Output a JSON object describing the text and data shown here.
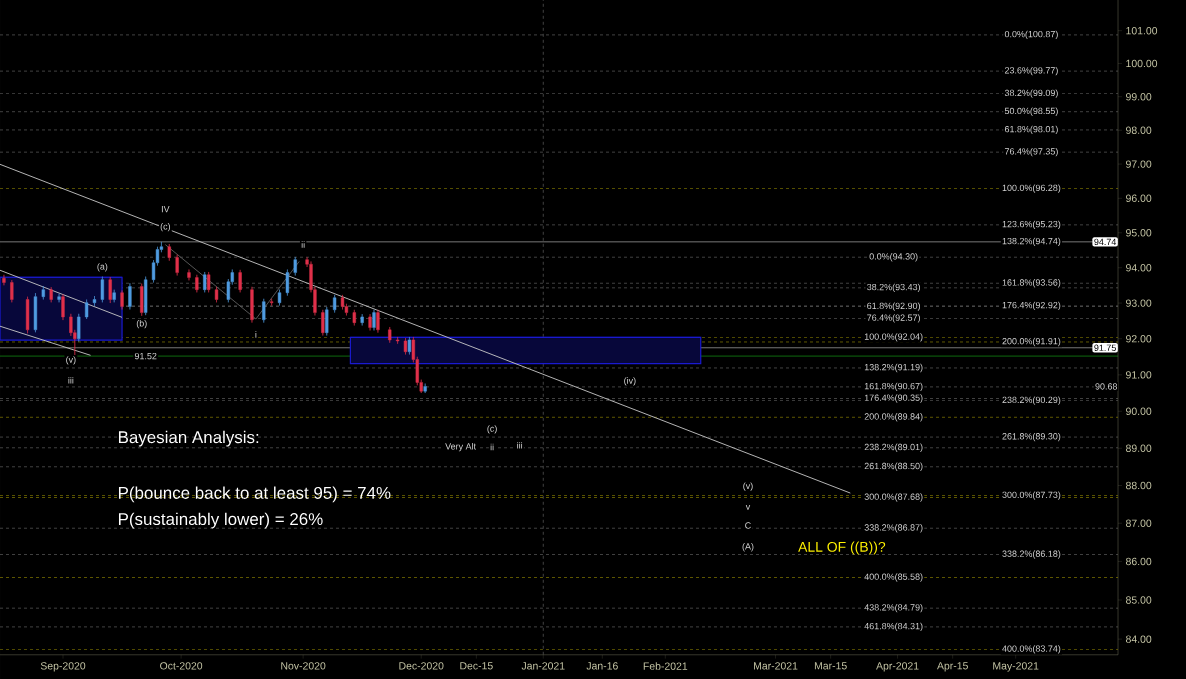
{
  "chart_data": {
    "type": "candlestick",
    "log": "y",
    "x": [
      "2020-08-17",
      "2020-08-19",
      "2020-08-23",
      "2020-08-25",
      "2020-08-27",
      "2020-08-29",
      "2020-08-31",
      "2020-09-01",
      "2020-09-03",
      "2020-09-04",
      "2020-09-05",
      "2020-09-07",
      "2020-09-09",
      "2020-09-11",
      "2020-09-13",
      "2020-09-14",
      "2020-09-16",
      "2020-09-18",
      "2020-09-21",
      "2020-09-22",
      "2020-09-24",
      "2020-09-25",
      "2020-09-26",
      "2020-09-28",
      "2020-09-30",
      "2020-10-03",
      "2020-10-05",
      "2020-10-07",
      "2020-10-08",
      "2020-10-10",
      "2020-10-13",
      "2020-10-14",
      "2020-10-16",
      "2020-10-19",
      "2020-10-22",
      "2020-10-24",
      "2020-10-26",
      "2020-10-28",
      "2020-10-30",
      "2020-11-02",
      "2020-11-03",
      "2020-11-04",
      "2020-11-06",
      "2020-11-07",
      "2020-11-09",
      "2020-11-11",
      "2020-11-12",
      "2020-11-14",
      "2020-11-16",
      "2020-11-18",
      "2020-11-19",
      "2020-11-20",
      "2020-11-23",
      "2020-11-25",
      "2020-11-27",
      "2020-11-28",
      "2020-11-29",
      "2020-11-30",
      "2020-12-01",
      "2020-12-02"
    ],
    "ohlc": [
      [
        93.7,
        93.8,
        93.5,
        93.58
      ],
      [
        93.58,
        93.65,
        93.02,
        93.1
      ],
      [
        93.1,
        93.18,
        92.15,
        92.25
      ],
      [
        92.25,
        93.28,
        92.18,
        93.18
      ],
      [
        93.18,
        93.48,
        93.1,
        93.38
      ],
      [
        93.38,
        93.45,
        93.02,
        93.1
      ],
      [
        93.1,
        93.26,
        93.02,
        93.18
      ],
      [
        93.18,
        93.25,
        92.52,
        92.61
      ],
      [
        92.61,
        92.7,
        92.08,
        92.17
      ],
      [
        92.17,
        92.25,
        91.52,
        92.0
      ],
      [
        92.0,
        92.7,
        91.92,
        92.61
      ],
      [
        92.61,
        93.1,
        92.55,
        93.01
      ],
      [
        93.01,
        93.2,
        92.92,
        93.1
      ],
      [
        93.1,
        93.75,
        93.02,
        93.66
      ],
      [
        93.66,
        93.74,
        93.0,
        93.1
      ],
      [
        93.1,
        93.38,
        93.02,
        93.29
      ],
      [
        93.29,
        93.36,
        92.82,
        92.9
      ],
      [
        92.9,
        93.56,
        92.82,
        93.47
      ],
      [
        93.47,
        93.55,
        92.64,
        92.73
      ],
      [
        92.73,
        93.75,
        92.66,
        93.66
      ],
      [
        93.66,
        94.22,
        93.58,
        94.14
      ],
      [
        94.14,
        94.6,
        94.06,
        94.52
      ],
      [
        94.52,
        94.74,
        94.44,
        94.6
      ],
      [
        94.6,
        94.68,
        94.2,
        94.29
      ],
      [
        94.29,
        94.37,
        93.78,
        93.86
      ],
      [
        93.86,
        93.95,
        93.64,
        93.72
      ],
      [
        93.72,
        93.8,
        93.3,
        93.38
      ],
      [
        93.38,
        93.88,
        93.3,
        93.8
      ],
      [
        93.8,
        93.88,
        93.3,
        93.38
      ],
      [
        93.38,
        93.46,
        93.02,
        93.1
      ],
      [
        93.1,
        93.68,
        93.02,
        93.6
      ],
      [
        93.6,
        93.95,
        93.52,
        93.86
      ],
      [
        93.86,
        93.94,
        93.3,
        93.38
      ],
      [
        93.38,
        93.46,
        92.45,
        92.53
      ],
      [
        92.53,
        93.12,
        92.45,
        93.04
      ],
      [
        93.04,
        93.12,
        92.93,
        93.01
      ],
      [
        93.01,
        93.38,
        92.93,
        93.29
      ],
      [
        93.29,
        93.95,
        93.21,
        93.86
      ],
      [
        93.86,
        94.31,
        93.78,
        94.23
      ],
      [
        94.23,
        94.3,
        94.02,
        94.1
      ],
      [
        94.1,
        94.18,
        93.3,
        93.38
      ],
      [
        93.38,
        93.46,
        92.65,
        92.73
      ],
      [
        92.73,
        92.81,
        92.09,
        92.17
      ],
      [
        92.17,
        92.89,
        92.09,
        92.81
      ],
      [
        92.81,
        93.23,
        92.73,
        93.15
      ],
      [
        93.15,
        93.23,
        92.82,
        92.9
      ],
      [
        92.9,
        92.98,
        92.65,
        92.73
      ],
      [
        92.73,
        92.81,
        92.37,
        92.45
      ],
      [
        92.45,
        92.69,
        92.37,
        92.61
      ],
      [
        92.61,
        92.69,
        92.23,
        92.31
      ],
      [
        92.31,
        92.81,
        92.23,
        92.73
      ],
      [
        92.73,
        92.81,
        92.17,
        92.25
      ],
      [
        92.25,
        92.33,
        91.89,
        91.97
      ],
      [
        91.97,
        92.05,
        91.86,
        91.94
      ],
      [
        91.94,
        92.02,
        91.56,
        91.64
      ],
      [
        91.64,
        92.05,
        91.56,
        91.97
      ],
      [
        91.97,
        92.05,
        91.34,
        91.42
      ],
      [
        91.42,
        91.5,
        90.71,
        90.79
      ],
      [
        90.79,
        90.87,
        90.5,
        90.55
      ],
      [
        90.55,
        90.76,
        90.5,
        90.68
      ]
    ],
    "colors": [
      "#e0304a",
      "#e0304a",
      "#e0304a",
      "#4f9be0",
      "#4f9be0",
      "#e0304a",
      "#4f9be0",
      "#e0304a",
      "#e0304a",
      "#e0304a",
      "#4f9be0",
      "#4f9be0",
      "#4f9be0",
      "#4f9be0",
      "#e0304a",
      "#4f9be0",
      "#e0304a",
      "#4f9be0",
      "#e0304a",
      "#4f9be0",
      "#4f9be0",
      "#4f9be0",
      "#4f9be0",
      "#e0304a",
      "#e0304a",
      "#e0304a",
      "#e0304a",
      "#4f9be0",
      "#e0304a",
      "#e0304a",
      "#4f9be0",
      "#4f9be0",
      "#e0304a",
      "#e0304a",
      "#4f9be0",
      "#e0304a",
      "#4f9be0",
      "#4f9be0",
      "#4f9be0",
      "#e0304a",
      "#e0304a",
      "#e0304a",
      "#e0304a",
      "#4f9be0",
      "#4f9be0",
      "#e0304a",
      "#e0304a",
      "#e0304a",
      "#4f9be0",
      "#e0304a",
      "#4f9be0",
      "#e0304a",
      "#e0304a",
      "#e0304a",
      "#e0304a",
      "#4f9be0",
      "#e0304a",
      "#e0304a",
      "#e0304a",
      "#4f9be0"
    ],
    "series": [
      {
        "type": "line",
        "x": [
          "2020-08-16",
          "2020-09-16"
        ],
        "values": [
          93.73,
          93.73
        ],
        "lower": [
          91.96,
          91.96
        ],
        "upper": [
          93.73,
          93.73
        ],
        "color": "#1a1ad0"
      },
      {
        "type": "line",
        "x": [
          "2020-11-13",
          "2021-02-10"
        ],
        "values": [
          92.04,
          92.04
        ],
        "lower": [
          91.31,
          91.31
        ],
        "upper": [
          92.04,
          92.04
        ],
        "color": "#1a1ad0"
      },
      {
        "type": "line",
        "x": [
          "2020-08-16",
          "2021-03-20"
        ],
        "values": [
          96.99,
          87.8
        ],
        "color": "#c8c8c8"
      },
      {
        "type": "line",
        "x": [
          "2020-08-16",
          "2020-09-16"
        ],
        "values": [
          93.93,
          92.6
        ],
        "color": "#c8c8c8"
      },
      {
        "type": "line",
        "x": [
          "2020-08-16",
          "2020-09-08"
        ],
        "values": [
          92.35,
          91.54
        ],
        "color": "#c8c8c8"
      },
      {
        "type": "line",
        "x": [
          "2020-09-27",
          "2020-10-20",
          "2020-10-31"
        ],
        "values": [
          94.66,
          92.55,
          94.18
        ],
        "color": "#606060"
      }
    ],
    "xlim": [
      "2020-08-16",
      "2021-05-27"
    ],
    "xticks": [
      {
        "value": "2020-09-01",
        "label": "Sep-2020"
      },
      {
        "value": "2020-10-01",
        "label": "Oct-2020"
      },
      {
        "value": "2020-11-01",
        "label": "Nov-2020"
      },
      {
        "value": "2020-12-01",
        "label": "Dec-2020"
      },
      {
        "value": "2020-12-15",
        "label": "Dec-15"
      },
      {
        "value": "2021-01-01",
        "label": "Jan-2021"
      },
      {
        "value": "2021-01-16",
        "label": "Jan-16"
      },
      {
        "value": "2021-02-01",
        "label": "Feb-2021"
      },
      {
        "value": "2021-03-01",
        "label": "Mar-2021"
      },
      {
        "value": "2021-03-15",
        "label": "Mar-15"
      },
      {
        "value": "2021-04-01",
        "label": "Apr-2021"
      },
      {
        "value": "2021-04-15",
        "label": "Apr-15"
      },
      {
        "value": "2021-05-01",
        "label": "May-2021"
      }
    ],
    "ylim": [
      83.6,
      101.95
    ],
    "yticks": [
      {
        "value": 84,
        "label": "84.00"
      },
      {
        "value": 85,
        "label": "85.00"
      },
      {
        "value": 86,
        "label": "86.00"
      },
      {
        "value": 87,
        "label": "87.00"
      },
      {
        "value": 88,
        "label": "88.00"
      },
      {
        "value": 89,
        "label": "89.00"
      },
      {
        "value": 90,
        "label": "90.00"
      },
      {
        "value": 91,
        "label": "91.00"
      },
      {
        "value": 92,
        "label": "92.00"
      },
      {
        "value": 93,
        "label": "93.00"
      },
      {
        "value": 94,
        "label": "94.00"
      },
      {
        "value": 95,
        "label": "95.00"
      },
      {
        "value": 96,
        "label": "96.00"
      },
      {
        "value": 97,
        "label": "97.00"
      },
      {
        "value": 98,
        "label": "98.00"
      },
      {
        "value": 99,
        "label": "99.00"
      },
      {
        "value": 100,
        "label": "100.00"
      },
      {
        "value": 101,
        "label": "101.00"
      }
    ],
    "ref_lines": [
      {
        "axis": "x",
        "value": "2021-01-01",
        "color": "#6e6e6e",
        "line_style": "dashed"
      },
      {
        "axis": "y",
        "value": 94.74,
        "label": "94.74",
        "color": "#c8c8c8",
        "line_style": "solid"
      },
      {
        "axis": "y",
        "value": 91.75,
        "label": "91.75",
        "color": "#c8c8c8",
        "line_style": "solid"
      },
      {
        "axis": "y",
        "value": 91.52,
        "color": "#18b018",
        "line_style": "solid"
      },
      {
        "axis": "y",
        "value": 94.3,
        "color": "#6e6e6e",
        "line_style": "dashed"
      },
      {
        "axis": "y",
        "value": 93.43,
        "color": "#6e6e6e",
        "line_style": "dashed"
      },
      {
        "axis": "y",
        "value": 92.9,
        "color": "#6e6e6e",
        "line_style": "dashed"
      },
      {
        "axis": "y",
        "value": 92.57,
        "color": "#6e6e6e",
        "line_style": "dashed"
      },
      {
        "axis": "y",
        "value": 92.04,
        "color": "#a09400",
        "line_style": "dashed"
      },
      {
        "axis": "y",
        "value": 91.19,
        "color": "#6e6e6e",
        "line_style": "dashed"
      },
      {
        "axis": "y",
        "value": 90.67,
        "color": "#6e6e6e",
        "line_style": "dashed"
      },
      {
        "axis": "y",
        "value": 90.35,
        "color": "#6e6e6e",
        "line_style": "dashed"
      },
      {
        "axis": "y",
        "value": 89.84,
        "color": "#a09400",
        "line_style": "dashed"
      },
      {
        "axis": "y",
        "value": 89.01,
        "color": "#6e6e6e",
        "line_style": "dashed"
      },
      {
        "axis": "y",
        "value": 88.5,
        "color": "#6e6e6e",
        "line_style": "dashed"
      },
      {
        "axis": "y",
        "value": 87.68,
        "color": "#a09400",
        "line_style": "dashed"
      },
      {
        "axis": "y",
        "value": 86.87,
        "color": "#6e6e6e",
        "line_style": "dashed"
      },
      {
        "axis": "y",
        "value": 85.58,
        "color": "#a09400",
        "line_style": "dashed"
      },
      {
        "axis": "y",
        "value": 84.79,
        "color": "#6e6e6e",
        "line_style": "dashed"
      },
      {
        "axis": "y",
        "value": 84.31,
        "color": "#6e6e6e",
        "line_style": "dashed"
      },
      {
        "axis": "y",
        "value": 100.87,
        "color": "#6e6e6e",
        "line_style": "dashed"
      },
      {
        "axis": "y",
        "value": 99.77,
        "color": "#6e6e6e",
        "line_style": "dashed"
      },
      {
        "axis": "y",
        "value": 99.09,
        "color": "#6e6e6e",
        "line_style": "dashed"
      },
      {
        "axis": "y",
        "value": 98.55,
        "color": "#6e6e6e",
        "line_style": "dashed"
      },
      {
        "axis": "y",
        "value": 98.01,
        "color": "#6e6e6e",
        "line_style": "dashed"
      },
      {
        "axis": "y",
        "value": 97.35,
        "color": "#6e6e6e",
        "line_style": "dashed"
      },
      {
        "axis": "y",
        "value": 96.28,
        "color": "#a09400",
        "line_style": "dashed"
      },
      {
        "axis": "y",
        "value": 95.23,
        "color": "#6e6e6e",
        "line_style": "dashed"
      },
      {
        "axis": "y",
        "value": 93.56,
        "color": "#6e6e6e",
        "line_style": "dashed"
      },
      {
        "axis": "y",
        "value": 92.92,
        "color": "#6e6e6e",
        "line_style": "dashed"
      },
      {
        "axis": "y",
        "value": 91.91,
        "color": "#a09400",
        "line_style": "dashed"
      },
      {
        "axis": "y",
        "value": 90.29,
        "color": "#6e6e6e",
        "line_style": "dashed"
      },
      {
        "axis": "y",
        "value": 89.3,
        "color": "#6e6e6e",
        "line_style": "dashed"
      },
      {
        "axis": "y",
        "value": 87.73,
        "color": "#a09400",
        "line_style": "dashed"
      },
      {
        "axis": "y",
        "value": 86.18,
        "color": "#6e6e6e",
        "line_style": "dashed"
      },
      {
        "axis": "y",
        "value": 83.74,
        "color": "#a09400",
        "line_style": "dashed"
      }
    ],
    "annotations": [
      "Bayesian Analysis:",
      "P(bounce back to at least 95) = 74%",
      "P(sustainably lower) = 26%",
      {
        "text": "0.0%(94.30)",
        "x": "2021-03-31",
        "y": 94.3
      },
      {
        "text": "38.2%(93.43)",
        "x": "2021-03-31",
        "y": 93.43
      },
      {
        "text": "61.8%(92.90)",
        "x": "2021-03-31",
        "y": 92.9
      },
      {
        "text": "76.4%(92.57)",
        "x": "2021-03-31",
        "y": 92.57
      },
      {
        "text": "100.0%(92.04)",
        "x": "2021-03-31",
        "y": 92.04
      },
      {
        "text": "138.2%(91.19)",
        "x": "2021-03-31",
        "y": 91.19
      },
      {
        "text": "161.8%(90.67)",
        "x": "2021-03-31",
        "y": 90.67
      },
      {
        "text": "176.4%(90.35)",
        "x": "2021-03-31",
        "y": 90.35
      },
      {
        "text": "200.0%(89.84)",
        "x": "2021-03-31",
        "y": 89.84
      },
      {
        "text": "238.2%(89.01)",
        "x": "2021-03-31",
        "y": 89.01
      },
      {
        "text": "261.8%(88.50)",
        "x": "2021-03-31",
        "y": 88.5
      },
      {
        "text": "300.0%(87.68)",
        "x": "2021-03-31",
        "y": 87.68
      },
      {
        "text": "338.2%(86.87)",
        "x": "2021-03-31",
        "y": 86.87
      },
      {
        "text": "400.0%(85.58)",
        "x": "2021-03-31",
        "y": 85.58
      },
      {
        "text": "438.2%(84.79)",
        "x": "2021-03-31",
        "y": 84.79
      },
      {
        "text": "461.8%(84.31)",
        "x": "2021-03-31",
        "y": 84.31
      },
      {
        "text": "0.0%(100.87)",
        "x": "2021-05-05",
        "y": 100.87
      },
      {
        "text": "23.6%(99.77)",
        "x": "2021-05-05",
        "y": 99.77
      },
      {
        "text": "38.2%(99.09)",
        "x": "2021-05-05",
        "y": 99.09
      },
      {
        "text": "50.0%(98.55)",
        "x": "2021-05-05",
        "y": 98.55
      },
      {
        "text": "61.8%(98.01)",
        "x": "2021-05-05",
        "y": 98.01
      },
      {
        "text": "76.4%(97.35)",
        "x": "2021-05-05",
        "y": 97.35
      },
      {
        "text": "100.0%(96.28)",
        "x": "2021-05-05",
        "y": 96.28
      },
      {
        "text": "123.6%(95.23)",
        "x": "2021-05-05",
        "y": 95.23
      },
      {
        "text": "138.2%(94.74)",
        "x": "2021-05-05",
        "y": 94.74
      },
      {
        "text": "161.8%(93.56)",
        "x": "2021-05-05",
        "y": 93.56
      },
      {
        "text": "176.4%(92.92)",
        "x": "2021-05-05",
        "y": 92.92
      },
      {
        "text": "200.0%(91.91)",
        "x": "2021-05-05",
        "y": 91.91
      },
      {
        "text": "238.2%(90.29)",
        "x": "2021-05-05",
        "y": 90.29
      },
      {
        "text": "261.8%(89.30)",
        "x": "2021-05-05",
        "y": 89.3
      },
      {
        "text": "300.0%(87.73)",
        "x": "2021-05-05",
        "y": 87.73
      },
      {
        "text": "338.2%(86.18)",
        "x": "2021-05-05",
        "y": 86.18
      },
      {
        "text": "400.0%(83.74)",
        "x": "2021-05-05",
        "y": 83.74
      },
      {
        "text": "91.52",
        "x": "2020-09-22",
        "y": 91.52
      },
      {
        "text": "90.68",
        "x": "2021-05-24",
        "y": 90.68
      },
      {
        "text": "IV",
        "x": "2020-09-27",
        "y": 95.68
      },
      {
        "text": "(c)",
        "x": "2020-09-27",
        "y": 95.16
      },
      {
        "text": "(a)",
        "x": "2020-09-11",
        "y": 94.01
      },
      {
        "text": "(b)",
        "x": "2020-09-21",
        "y": 92.41
      },
      {
        "text": "(v)",
        "x": "2020-09-03",
        "y": 91.4
      },
      {
        "text": "iii",
        "x": "2020-09-03",
        "y": 90.85
      },
      {
        "text": "i",
        "x": "2020-10-20",
        "y": 92.12
      },
      {
        "text": "ii",
        "x": "2020-11-01",
        "y": 94.66
      },
      {
        "text": "(iv)",
        "x": "2021-01-23",
        "y": 90.82
      },
      {
        "text": "(c)",
        "x": "2020-12-19",
        "y": 89.51
      },
      {
        "text": "ii",
        "x": "2020-12-19",
        "y": 89.03
      },
      {
        "text": "Very Alt",
        "x": "2020-12-11",
        "y": 89.03
      },
      {
        "text": "iii",
        "x": "2020-12-26",
        "y": 89.08
      },
      {
        "text": "(v)",
        "x": "2021-02-22",
        "y": 87.97
      },
      {
        "text": "v",
        "x": "2021-02-22",
        "y": 87.42
      },
      {
        "text": "C",
        "x": "2021-02-22",
        "y": 86.94
      },
      {
        "text": "(A)",
        "x": "2021-02-22",
        "y": 86.37
      },
      "ALL OF ((B))?"
    ]
  }
}
